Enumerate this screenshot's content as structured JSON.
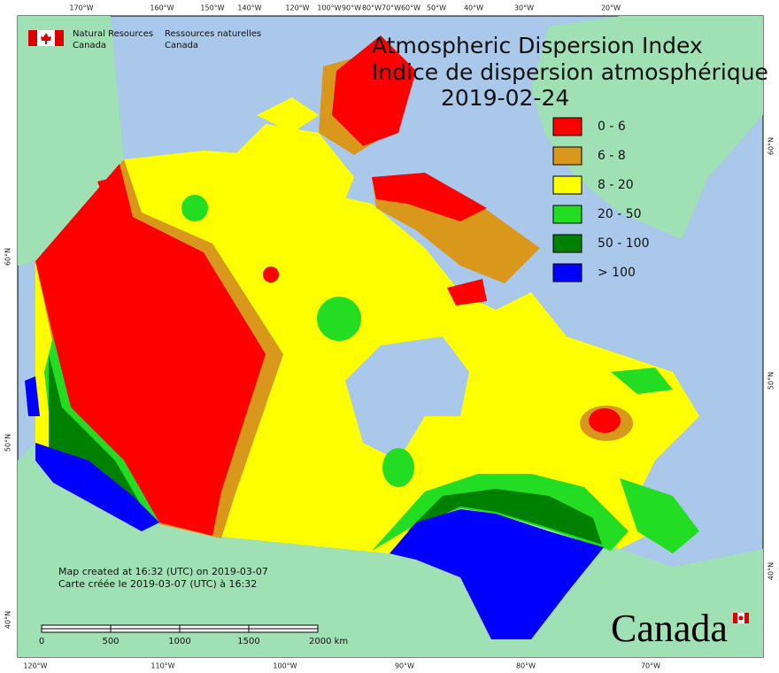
{
  "map": {
    "title": "Atmospheric Dispersion Index",
    "subtitle": "Indice de dispersion atmosphérique",
    "date": "2019-02-24",
    "agency": {
      "en": [
        "Natural Resources",
        "Canada"
      ],
      "fr": [
        "Ressources naturelles",
        "Canada"
      ]
    },
    "legend": [
      {
        "label": "0 - 6",
        "color": "#ff0000"
      },
      {
        "label": "6 - 8",
        "color": "#d9981c"
      },
      {
        "label": "8 - 20",
        "color": "#ffff00"
      },
      {
        "label": "20 - 50",
        "color": "#22dd22"
      },
      {
        "label": "50 - 100",
        "color": "#008000"
      },
      {
        "label": "> 100",
        "color": "#0000ff"
      }
    ],
    "created": [
      "Map created at 16:32 (UTC) on 2019-03-07",
      "Carte créée le 2019-03-07 (UTC) à 16:32"
    ],
    "scale": [
      "0",
      "500",
      "1000",
      "1500",
      "2000 km"
    ],
    "wordmark": "Canada",
    "top_axis": [
      "170°W",
      "160°W",
      "150°W",
      "140°W",
      "120°W",
      "100°W",
      "90°W",
      "80°W",
      "70°W",
      "60°W",
      "50°W",
      "40°W",
      "30°W",
      "20°W"
    ],
    "bottom_axis": [
      "120°W",
      "110°W",
      "100°W",
      "90°W",
      "80°W",
      "70°W"
    ],
    "left_axis": [
      "60°N",
      "50°N",
      "40°N"
    ],
    "right_axis": [
      "60°N",
      "50°N",
      "40°N"
    ]
  }
}
